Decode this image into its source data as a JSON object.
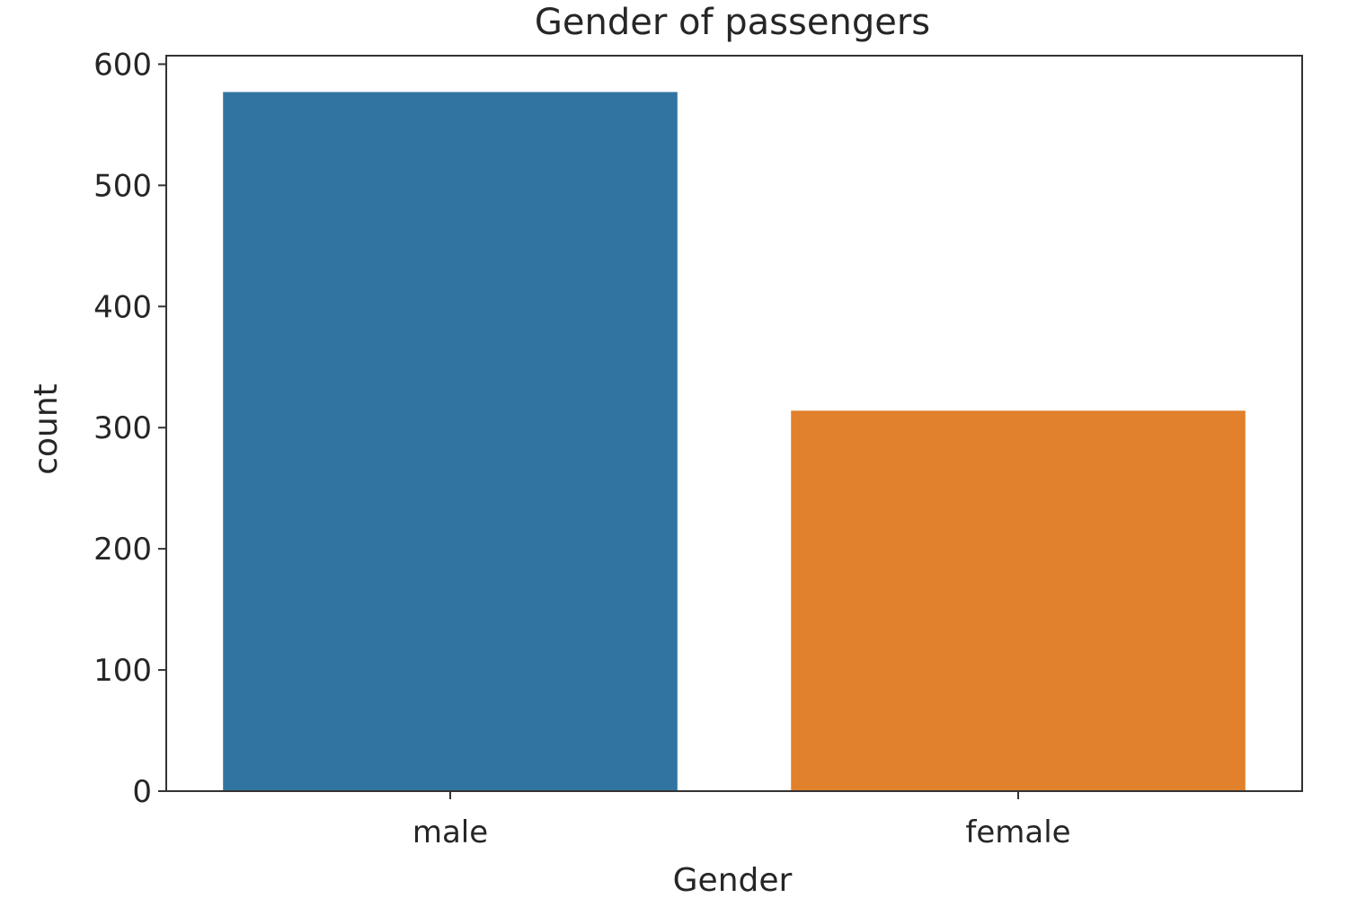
{
  "chart_data": {
    "type": "bar",
    "title": "Gender of passengers",
    "xlabel": "Gender",
    "ylabel": "count",
    "categories": [
      "male",
      "female"
    ],
    "values": [
      577,
      314
    ],
    "colors": [
      "#3274a1",
      "#e1812c"
    ],
    "ylim": [
      0,
      607
    ],
    "yticks": [
      0,
      100,
      200,
      300,
      400,
      500,
      600
    ],
    "grid": false
  }
}
